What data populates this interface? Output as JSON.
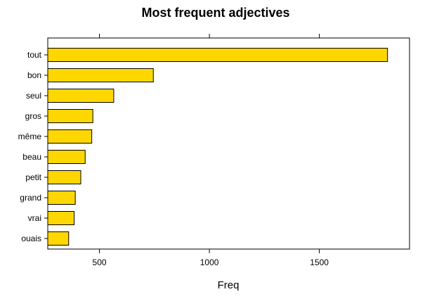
{
  "chart_data": {
    "type": "bar",
    "orientation": "horizontal",
    "title": "Most frequent adjectives",
    "xlabel": "Freq",
    "ylabel": "",
    "categories": [
      "tout",
      "bon",
      "seul",
      "gros",
      "même",
      "beau",
      "petit",
      "grand",
      "vrai",
      "ouais"
    ],
    "values": [
      1810,
      745,
      565,
      470,
      465,
      435,
      415,
      390,
      385,
      360
    ],
    "xlim": [
      265,
      1910
    ],
    "xticks": [
      500,
      1000,
      1500
    ],
    "grid": false,
    "bar_color": "#FFD700",
    "bar_edge_color": "#000000"
  }
}
